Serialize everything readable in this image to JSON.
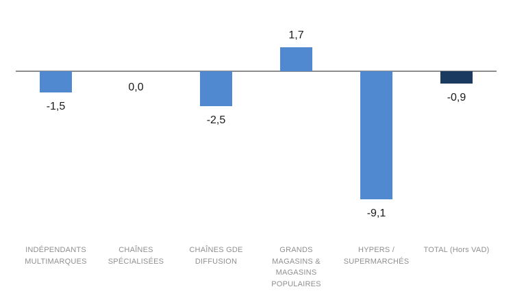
{
  "chart_data": {
    "type": "bar",
    "title": "",
    "xlabel": "",
    "ylabel": "",
    "categories": [
      "INDÉPENDANTS MULTIMARQUES",
      "CHAÎNES SPÉCIALISÉES",
      "CHAÎNES GDE DIFFUSION",
      "GRANDS MAGASINS & MAGASINS POPULAIRES",
      "HYPERS / SUPERMARCHÉS",
      "TOTAL (Hors VAD)"
    ],
    "category_lines": [
      [
        "INDÉPENDANTS",
        "MULTIMARQUES"
      ],
      [
        "CHAÎNES",
        "SPÉCIALISÉES"
      ],
      [
        "CHAÎNES GDE",
        "DIFFUSION"
      ],
      [
        "GRANDS",
        "MAGASINS &",
        "MAGASINS",
        "POPULAIRES"
      ],
      [
        "HYPERS /",
        "SUPERMARCHÉS"
      ],
      [
        "TOTAL (Hors VAD)"
      ]
    ],
    "values": [
      -1.5,
      0.0,
      -2.5,
      1.7,
      -9.1,
      -0.9
    ],
    "value_labels": [
      "-1,5",
      "0,0",
      "-2,5",
      "1,7",
      "-9,1",
      "-0,9"
    ],
    "bar_colors": [
      "#5089D0",
      "#5089D0",
      "#5089D0",
      "#5089D0",
      "#5089D0",
      "#1B3A60"
    ],
    "ylim": [
      -9.1,
      1.7
    ],
    "grid": false,
    "legend": false
  },
  "colors": {
    "background": "#FFFFFF",
    "bar_blue": "#5089D0",
    "bar_navy_total": "#1B3A60",
    "axis_line": "#8C8C8C",
    "value_text": "#1A1A1A",
    "category_text": "#8F8F8F"
  }
}
